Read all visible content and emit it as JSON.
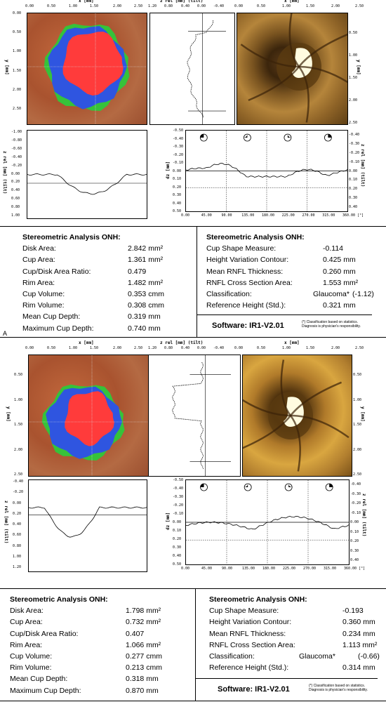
{
  "figure_label": "A",
  "panels": [
    {
      "top_axis_x": [
        "0.00",
        "0.50",
        "1.00",
        "1.50",
        "2.00",
        "2.50"
      ],
      "top_axis_title_x": "x [mm]",
      "top_axis_title_zrel": "z rel [mm] (tilt)",
      "zrel_ticks_top": [
        "1.20",
        "0.80",
        "0.40",
        "0.00",
        "-0.40"
      ],
      "y_axis_title": "y [mm]",
      "y_ticks": [
        "0.00",
        "0.50",
        "1.00",
        "1.50",
        "2.00",
        "2.50"
      ],
      "y_ticks_right": [
        "0.50",
        "1.00",
        "1.50",
        "2.00",
        "2.50"
      ],
      "zrel_axis_title": "z rel [mm] (tilt)",
      "zrel_ticks_left": [
        "-1.00",
        "-0.80",
        "-0.60",
        "-0.40",
        "-0.20",
        "0.00",
        "0.20",
        "0.40",
        "0.60",
        "0.80",
        "1.00"
      ],
      "dz_title": "dz [mm]",
      "dz_right_title": "z rel [mm] (tilt)",
      "dz_ticks": [
        "-0.50",
        "-0.40",
        "-0.30",
        "-0.20",
        "-0.10",
        "0.00",
        "0.10",
        "0.20",
        "0.30",
        "0.40",
        "0.50"
      ],
      "dz_ticks_right": [
        "-0.40",
        "-0.30",
        "-0.20",
        "-0.10",
        "0.00",
        "0.10",
        "0.20",
        "0.30",
        "0.40"
      ],
      "angle_ticks": [
        "0.00",
        "45.00",
        "90.00",
        "135.00",
        "180.00",
        "225.00",
        "270.00",
        "315.00",
        "360.00 [°]"
      ],
      "table": {
        "left_title": "Stereometric Analysis ONH:",
        "left_rows": [
          {
            "label": "Disk Area:",
            "value": "2.842 mm²"
          },
          {
            "label": "Cup Area:",
            "value": "1.361 mm²"
          },
          {
            "label": "Cup/Disk Area Ratio:",
            "value": "0.479"
          },
          {
            "label": "Rim Area:",
            "value": "1.482 mm²"
          },
          {
            "label": "Cup Volume:",
            "value": "0.353 cmm"
          },
          {
            "label": "Rim Volume:",
            "value": "0.308 cmm"
          },
          {
            "label": "Mean Cup Depth:",
            "value": "0.319 mm"
          },
          {
            "label": "Maximum Cup Depth:",
            "value": "0.740 mm"
          }
        ],
        "right_title": "Stereometric Analysis ONH:",
        "right_rows": [
          {
            "label": "Cup Shape Measure:",
            "value": "-0.114"
          },
          {
            "label": "Height Variation Contour:",
            "value": "0.425 mm"
          },
          {
            "label": "Mean RNFL Thickness:",
            "value": "0.260 mm"
          },
          {
            "label": "RNFL Cross Section Area:",
            "value": "1.553 mm²"
          },
          {
            "label": "Classification:",
            "value": "Glaucoma*",
            "extra": "(-1.12)"
          },
          {
            "label": "Reference Height (Std.):",
            "value": "0.321 mm"
          }
        ],
        "software": "Software: IR1-V2.01",
        "note_line1": "(*) Classification based on statistics.",
        "note_line2": "Diagnosis is physician's responsibility."
      },
      "colors": {
        "cup": "#ff3b3b",
        "rim": "#2f55e0",
        "rim_alt": "#36c23a"
      }
    },
    {
      "top_axis_x": [
        "0.00",
        "0.50",
        "1.00",
        "1.50",
        "2.00",
        "2.50"
      ],
      "top_axis_title_x": "x [mm]",
      "top_axis_title_zrel": "z rel [mm] (tilt)",
      "zrel_ticks_top": [
        "1.20",
        "0.80",
        "0.40",
        "0.00",
        "-0.40"
      ],
      "y_axis_title": "y [mm]",
      "y_ticks": [
        "0.50",
        "1.00",
        "1.50",
        "2.00",
        "2.50"
      ],
      "y_ticks_right": [
        "0.50",
        "1.00",
        "1.50",
        "2.00",
        "2.50"
      ],
      "zrel_axis_title": "z rel [mm] (tilt)",
      "zrel_ticks_left": [
        "-0.40",
        "-0.20",
        "0.00",
        "0.20",
        "0.40",
        "0.60",
        "0.80",
        "1.00",
        "1.20"
      ],
      "dz_title": "dz [mm]",
      "dz_right_title": "z rel [mm] (tilt)",
      "dz_ticks": [
        "-0.50",
        "-0.40",
        "-0.30",
        "-0.20",
        "-0.10",
        "0.00",
        "0.10",
        "0.20",
        "0.30",
        "0.40",
        "0.50"
      ],
      "dz_ticks_right": [
        "-0.40",
        "-0.30",
        "-0.20",
        "-0.10",
        "0.00",
        "0.10",
        "0.20",
        "0.30",
        "0.40"
      ],
      "angle_ticks": [
        "0.00",
        "45.00",
        "90.00",
        "135.00",
        "180.00",
        "225.00",
        "270.00",
        "315.00",
        "360.00 [°]"
      ],
      "table": {
        "left_title": "Stereometric Analysis ONH:",
        "left_rows": [
          {
            "label": "Disk Area:",
            "value": "1.798 mm²"
          },
          {
            "label": "Cup Area:",
            "value": "0.732 mm²"
          },
          {
            "label": "Cup/Disk Area Ratio:",
            "value": "0.407"
          },
          {
            "label": "Rim Area:",
            "value": "1.066 mm²"
          },
          {
            "label": "Cup Volume:",
            "value": "0.277 cmm"
          },
          {
            "label": "Rim Volume:",
            "value": "0.213 cmm"
          },
          {
            "label": "Mean Cup Depth:",
            "value": "0.318 mm"
          },
          {
            "label": "Maximum Cup Depth:",
            "value": "0.870 mm"
          }
        ],
        "right_title": "Stereometric Analysis ONH:",
        "right_rows": [
          {
            "label": "Cup Shape Measure:",
            "value": "-0.193"
          },
          {
            "label": "Height Variation Contour:",
            "value": "0.360 mm"
          },
          {
            "label": "Mean RNFL Thickness:",
            "value": "0.234 mm"
          },
          {
            "label": "RNFL Cross Section Area:",
            "value": "1.113 mm²"
          },
          {
            "label": "Classification:",
            "value": "Glaucoma*",
            "extra": "(-0.66)"
          },
          {
            "label": "Reference Height (Std.):",
            "value": "0.314 mm"
          }
        ],
        "software": "Software: IR1-V2.01",
        "note_line1": "(*) Classification based on statistics.",
        "note_line2": "Diagnosis is physician's responsibility."
      },
      "colors": {
        "cup": "#ff3b3b",
        "rim": "#2f55e0",
        "rim_alt": "#36c23a"
      }
    }
  ]
}
